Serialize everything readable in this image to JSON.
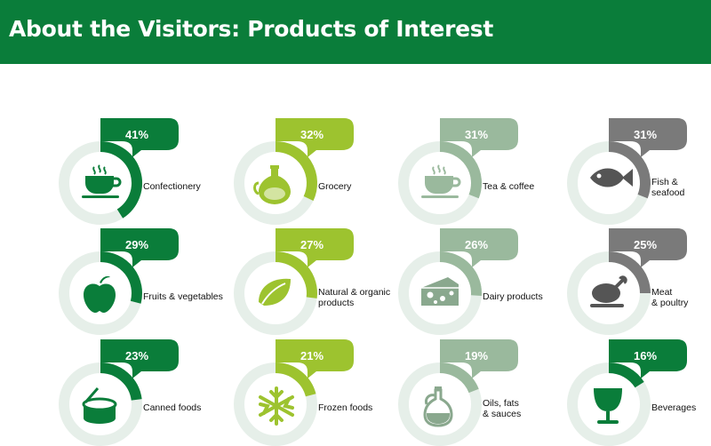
{
  "header": {
    "title": "About the Visitors: Products of Interest"
  },
  "colors": {
    "header": "#0a7d3a",
    "track": "#e6efe9"
  },
  "chart_data": {
    "type": "table",
    "title": "About the Visitors: Products of Interest",
    "unit": "%",
    "categories": [
      {
        "label": "Confectionery",
        "value": 41,
        "percent_label": "41%",
        "color": "#0a7d3a",
        "icon": "steaming-cup-icon"
      },
      {
        "label": "Grocery",
        "value": 32,
        "percent_label": "32%",
        "color": "#9dc32f",
        "icon": "bottle-icon"
      },
      {
        "label": "Tea & coffee",
        "value": 31,
        "percent_label": "31%",
        "color": "#9ab99d",
        "icon": "coffee-cup-icon"
      },
      {
        "label": "Fish &\nseafood",
        "value": 31,
        "percent_label": "31%",
        "color": "#7a7a7a",
        "icon": "fish-icon"
      },
      {
        "label": "Fruits & vegetables",
        "value": 29,
        "percent_label": "29%",
        "color": "#0a7d3a",
        "icon": "apple-icon"
      },
      {
        "label": "Natural & organic\nproducts",
        "value": 27,
        "percent_label": "27%",
        "color": "#9dc32f",
        "icon": "leaf-icon"
      },
      {
        "label": "Dairy products",
        "value": 26,
        "percent_label": "26%",
        "color": "#9ab99d",
        "icon": "cheese-icon"
      },
      {
        "label": "Meat\n& poultry",
        "value": 25,
        "percent_label": "25%",
        "color": "#7a7a7a",
        "icon": "roast-chicken-icon"
      },
      {
        "label": "Canned foods",
        "value": 23,
        "percent_label": "23%",
        "color": "#0a7d3a",
        "icon": "open-can-icon"
      },
      {
        "label": "Frozen foods",
        "value": 21,
        "percent_label": "21%",
        "color": "#9dc32f",
        "icon": "snowflake-icon"
      },
      {
        "label": "Oils, fats\n& sauces",
        "value": 19,
        "percent_label": "19%",
        "color": "#9ab99d",
        "icon": "oil-bottle-icon"
      },
      {
        "label": "Beverages",
        "value": 16,
        "percent_label": "16%",
        "color": "#0a7d3a",
        "icon": "glass-icon"
      }
    ]
  }
}
